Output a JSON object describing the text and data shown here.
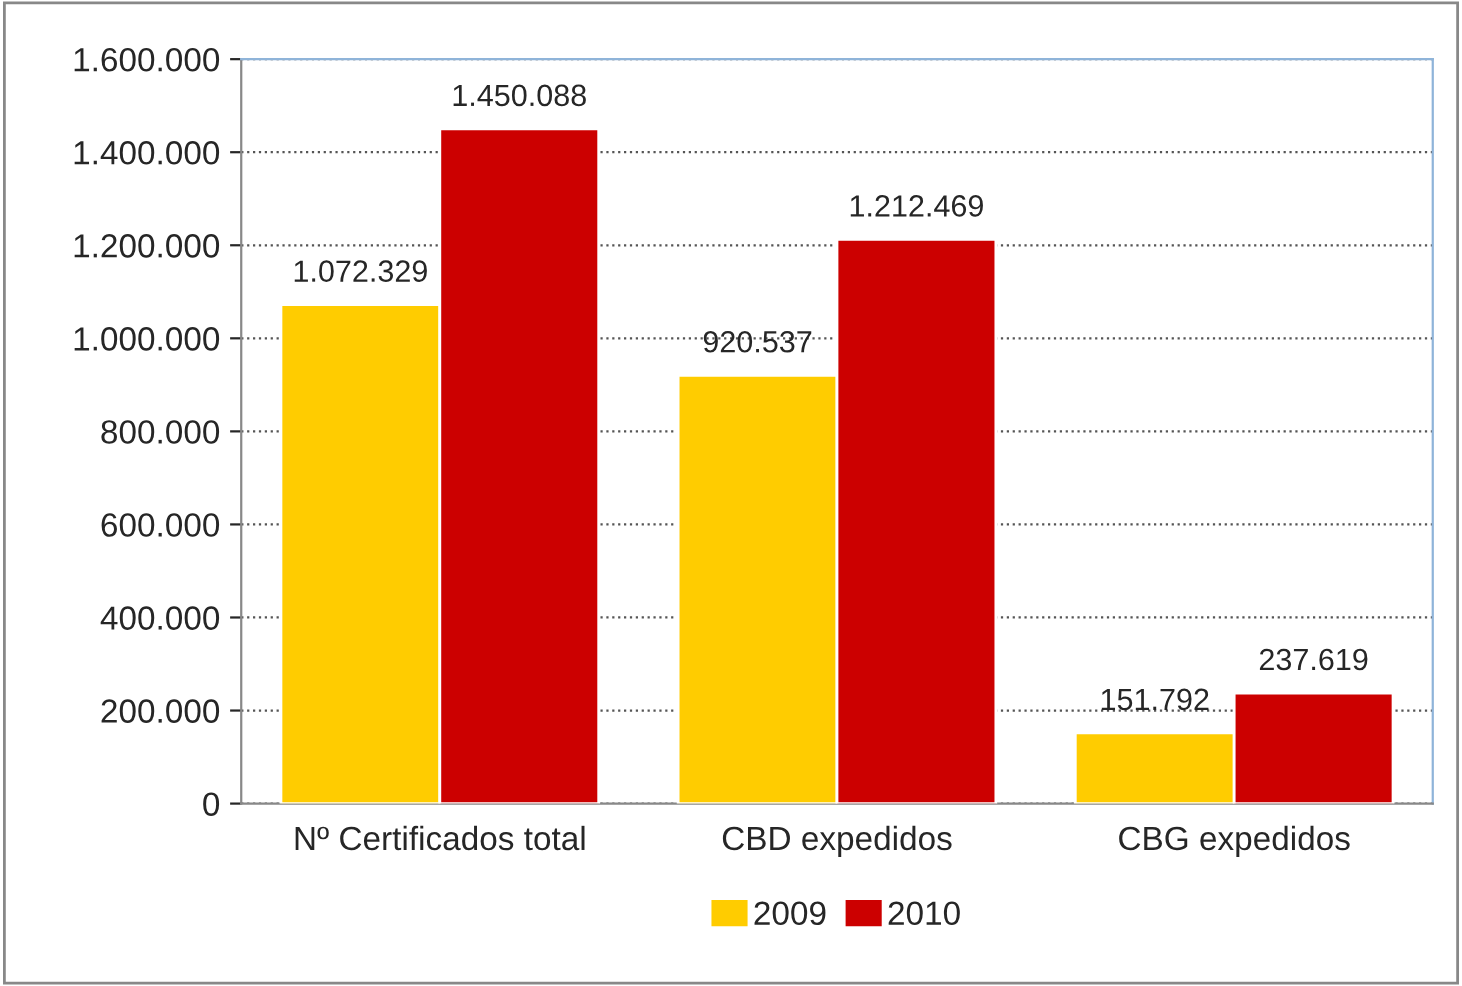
{
  "chart_data": {
    "type": "bar",
    "categories": [
      "Nº Certificados total",
      "CBD expedidos",
      "CBG expedidos"
    ],
    "series": [
      {
        "name": "2009",
        "color": "#ffcc00",
        "values": [
          1072329,
          920537,
          151792
        ],
        "value_labels": [
          "1.072.329",
          "920.537",
          "151.792"
        ]
      },
      {
        "name": "2010",
        "color": "#cc0000",
        "values": [
          1450088,
          1212469,
          237619
        ],
        "value_labels": [
          "1.450.088",
          "1.212.469",
          "237.619"
        ]
      }
    ],
    "ylim": [
      0,
      1600000
    ],
    "yticks": [
      0,
      {
        "value": 200000,
        "label": "200.000"
      },
      {
        "value": 400000,
        "label": "400.000"
      },
      {
        "value": 600000,
        "label": "600.000"
      },
      {
        "value": 800000,
        "label": "800.000"
      },
      {
        "value": 1000000,
        "label": "1.000.000"
      },
      {
        "value": 1200000,
        "label": "1.200.000"
      },
      {
        "value": 1400000,
        "label": "1.400.000"
      },
      {
        "value": 1600000,
        "label": "1.600.000"
      }
    ],
    "grid": "y",
    "legend": "bottom"
  }
}
